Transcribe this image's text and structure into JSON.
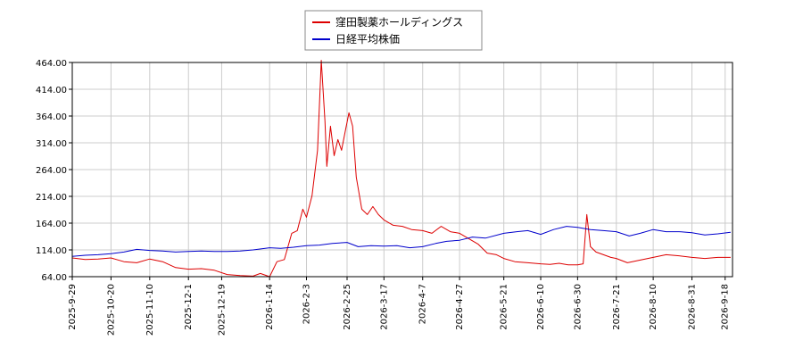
{
  "chart_data": {
    "type": "line",
    "title": "",
    "xlabel": "",
    "ylabel": "",
    "grid": true,
    "legend_position": "top-center",
    "ylim": [
      64,
      464
    ],
    "xlim": [
      "2025-09-29",
      "2026-09-22"
    ],
    "y_ticks": [
      "464.00",
      "414.00",
      "364.00",
      "314.00",
      "264.00",
      "214.00",
      "164.00",
      "114.00",
      "64.00"
    ],
    "x_ticks": [
      "2025-9-29",
      "2025-10-20",
      "2025-11-10",
      "2025-12-1",
      "2025-12-19",
      "2026-1-14",
      "2026-2-3",
      "2026-2-25",
      "2026-3-17",
      "2026-4-7",
      "2026-4-27",
      "2026-5-21",
      "2026-6-10",
      "2026-6-30",
      "2026-7-21",
      "2026-8-10",
      "2026-8-31",
      "2026-9-18"
    ],
    "series": [
      {
        "name": "窪田製薬ホールディングス",
        "color": "#dd0000",
        "points": [
          [
            "2025-09-29",
            99
          ],
          [
            "2025-10-06",
            96
          ],
          [
            "2025-10-13",
            97
          ],
          [
            "2025-10-20",
            99
          ],
          [
            "2025-10-27",
            92
          ],
          [
            "2025-11-03",
            90
          ],
          [
            "2025-11-10",
            97
          ],
          [
            "2025-11-17",
            92
          ],
          [
            "2025-11-24",
            81
          ],
          [
            "2025-12-01",
            78
          ],
          [
            "2025-12-08",
            79
          ],
          [
            "2025-12-15",
            76
          ],
          [
            "2025-12-22",
            68
          ],
          [
            "2025-12-29",
            66
          ],
          [
            "2026-01-05",
            65
          ],
          [
            "2026-01-09",
            70
          ],
          [
            "2026-01-14",
            64
          ],
          [
            "2026-01-18",
            92
          ],
          [
            "2026-01-22",
            96
          ],
          [
            "2026-01-26",
            145
          ],
          [
            "2026-01-29",
            150
          ],
          [
            "2026-02-01",
            190
          ],
          [
            "2026-02-03",
            175
          ],
          [
            "2026-02-06",
            215
          ],
          [
            "2026-02-09",
            300
          ],
          [
            "2026-02-11",
            468
          ],
          [
            "2026-02-13",
            355
          ],
          [
            "2026-02-14",
            270
          ],
          [
            "2026-02-16",
            345
          ],
          [
            "2026-02-18",
            290
          ],
          [
            "2026-02-20",
            320
          ],
          [
            "2026-02-22",
            300
          ],
          [
            "2026-02-24",
            335
          ],
          [
            "2026-02-26",
            370
          ],
          [
            "2026-02-28",
            345
          ],
          [
            "2026-03-02",
            250
          ],
          [
            "2026-03-05",
            190
          ],
          [
            "2026-03-08",
            180
          ],
          [
            "2026-03-11",
            195
          ],
          [
            "2026-03-14",
            180
          ],
          [
            "2026-03-17",
            170
          ],
          [
            "2026-03-22",
            160
          ],
          [
            "2026-03-27",
            158
          ],
          [
            "2026-04-01",
            152
          ],
          [
            "2026-04-07",
            150
          ],
          [
            "2026-04-12",
            145
          ],
          [
            "2026-04-17",
            158
          ],
          [
            "2026-04-22",
            148
          ],
          [
            "2026-04-27",
            145
          ],
          [
            "2026-05-02",
            135
          ],
          [
            "2026-05-07",
            125
          ],
          [
            "2026-05-12",
            108
          ],
          [
            "2026-05-17",
            105
          ],
          [
            "2026-05-21",
            98
          ],
          [
            "2026-05-27",
            92
          ],
          [
            "2026-06-03",
            90
          ],
          [
            "2026-06-10",
            88
          ],
          [
            "2026-06-15",
            87
          ],
          [
            "2026-06-20",
            89
          ],
          [
            "2026-06-25",
            86
          ],
          [
            "2026-06-30",
            86
          ],
          [
            "2026-07-03",
            88
          ],
          [
            "2026-07-05",
            180
          ],
          [
            "2026-07-07",
            120
          ],
          [
            "2026-07-10",
            110
          ],
          [
            "2026-07-14",
            105
          ],
          [
            "2026-07-18",
            100
          ],
          [
            "2026-07-21",
            98
          ],
          [
            "2026-07-27",
            90
          ],
          [
            "2026-08-03",
            95
          ],
          [
            "2026-08-10",
            100
          ],
          [
            "2026-08-17",
            105
          ],
          [
            "2026-08-24",
            103
          ],
          [
            "2026-08-31",
            100
          ],
          [
            "2026-09-07",
            98
          ],
          [
            "2026-09-14",
            100
          ],
          [
            "2026-09-18",
            100
          ],
          [
            "2026-09-21",
            100
          ]
        ]
      },
      {
        "name": "日経平均株価",
        "color": "#0000cc",
        "points": [
          [
            "2025-09-29",
            102
          ],
          [
            "2025-10-06",
            104
          ],
          [
            "2025-10-13",
            105
          ],
          [
            "2025-10-20",
            107
          ],
          [
            "2025-10-27",
            110
          ],
          [
            "2025-11-03",
            115
          ],
          [
            "2025-11-10",
            113
          ],
          [
            "2025-11-17",
            112
          ],
          [
            "2025-11-24",
            110
          ],
          [
            "2025-12-01",
            111
          ],
          [
            "2025-12-08",
            112
          ],
          [
            "2025-12-15",
            111
          ],
          [
            "2025-12-22",
            111
          ],
          [
            "2025-12-29",
            112
          ],
          [
            "2026-01-05",
            114
          ],
          [
            "2026-01-14",
            118
          ],
          [
            "2026-01-20",
            117
          ],
          [
            "2026-01-27",
            119
          ],
          [
            "2026-02-03",
            122
          ],
          [
            "2026-02-10",
            123
          ],
          [
            "2026-02-17",
            126
          ],
          [
            "2026-02-25",
            128
          ],
          [
            "2026-03-03",
            120
          ],
          [
            "2026-03-10",
            122
          ],
          [
            "2026-03-17",
            121
          ],
          [
            "2026-03-24",
            122
          ],
          [
            "2026-03-31",
            118
          ],
          [
            "2026-04-07",
            120
          ],
          [
            "2026-04-14",
            126
          ],
          [
            "2026-04-20",
            130
          ],
          [
            "2026-04-27",
            132
          ],
          [
            "2026-05-04",
            138
          ],
          [
            "2026-05-11",
            136
          ],
          [
            "2026-05-21",
            145
          ],
          [
            "2026-05-28",
            148
          ],
          [
            "2026-06-03",
            150
          ],
          [
            "2026-06-10",
            143
          ],
          [
            "2026-06-17",
            152
          ],
          [
            "2026-06-24",
            158
          ],
          [
            "2026-06-30",
            156
          ],
          [
            "2026-07-07",
            152
          ],
          [
            "2026-07-14",
            150
          ],
          [
            "2026-07-21",
            148
          ],
          [
            "2026-07-28",
            140
          ],
          [
            "2026-08-03",
            145
          ],
          [
            "2026-08-10",
            152
          ],
          [
            "2026-08-17",
            148
          ],
          [
            "2026-08-24",
            148
          ],
          [
            "2026-08-31",
            146
          ],
          [
            "2026-09-07",
            142
          ],
          [
            "2026-09-14",
            144
          ],
          [
            "2026-09-21",
            147
          ]
        ]
      }
    ]
  }
}
